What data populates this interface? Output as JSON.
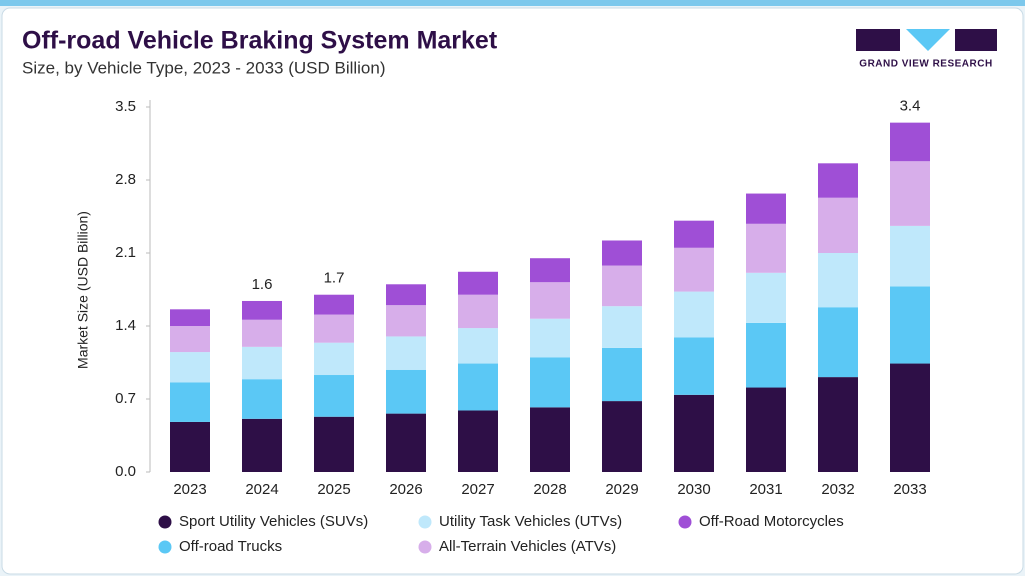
{
  "chart_data": {
    "type": "stacked_bar",
    "title": "Off-road Vehicle Braking System Market",
    "subtitle": "Size, by Vehicle Type, 2023 - 2033 (USD Billion)",
    "y_label": "Market Size (USD Billion)",
    "brand": "GRAND VIEW RESEARCH",
    "categories": [
      "2023",
      "2024",
      "2025",
      "2026",
      "2027",
      "2028",
      "2029",
      "2030",
      "2031",
      "2032",
      "2033"
    ],
    "series": [
      {
        "name": "Sport Utility Vehicles (SUVs)",
        "color": "#2e0f47",
        "values": [
          0.48,
          0.51,
          0.53,
          0.56,
          0.59,
          0.62,
          0.68,
          0.74,
          0.81,
          0.91,
          1.04
        ]
      },
      {
        "name": "Off-road Trucks",
        "color": "#5bc8f5",
        "values": [
          0.38,
          0.38,
          0.4,
          0.42,
          0.45,
          0.48,
          0.51,
          0.55,
          0.62,
          0.67,
          0.74
        ]
      },
      {
        "name": "Utility Task Vehicles (UTVs)",
        "color": "#bfe8fb",
        "values": [
          0.29,
          0.31,
          0.31,
          0.32,
          0.34,
          0.37,
          0.4,
          0.44,
          0.48,
          0.52,
          0.58
        ]
      },
      {
        "name": "All-Terrain Vehicles (ATVs)",
        "color": "#d7aeea",
        "values": [
          0.25,
          0.26,
          0.27,
          0.3,
          0.32,
          0.35,
          0.39,
          0.42,
          0.47,
          0.53,
          0.62
        ]
      },
      {
        "name": "Off-Road Motorcycles",
        "color": "#9f4fd6",
        "values": [
          0.16,
          0.18,
          0.19,
          0.2,
          0.22,
          0.23,
          0.24,
          0.26,
          0.29,
          0.33,
          0.37
        ]
      }
    ],
    "total_labels": [
      null,
      "1.6",
      "1.7",
      null,
      null,
      null,
      null,
      null,
      null,
      null,
      "3.4"
    ],
    "ylim": [
      0,
      3.5
    ],
    "yticks": [
      {
        "value": 0,
        "label": "0.0"
      },
      0.7,
      1.4,
      2.1,
      2.8,
      3.5
    ],
    "grid": false
  }
}
